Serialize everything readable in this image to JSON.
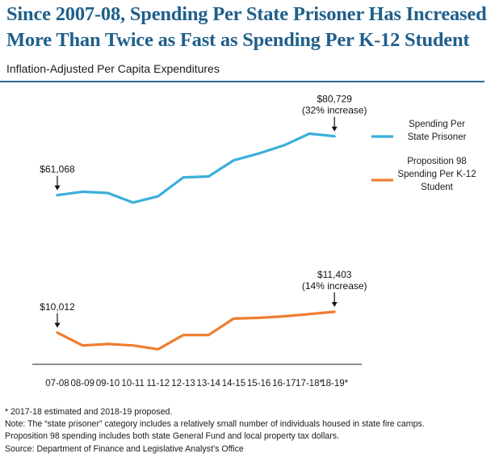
{
  "title_line1": "Since 2007-08, Spending Per State Prisoner Has Increased",
  "title_line2": "More Than Twice as Fast as Spending Per K-12 Student",
  "subtitle": "Inflation-Adjusted Per Capita Expenditures",
  "footnotes": [
    "* 2017-18 estimated and 2018-19 proposed.",
    "Note: The “state prisoner” category includes a relatively small number of individuals housed in state fire camps.",
    "Proposition 98 spending includes both state General Fund and local property tax dollars.",
    "Source: Department of Finance and Legislative Analyst’s Office"
  ],
  "chart_data": {
    "type": "line",
    "categories": [
      "07-08",
      "08-09",
      "09-10",
      "10-11",
      "11-12",
      "12-13",
      "13-14",
      "14-15",
      "15-16",
      "16-17",
      "17-18*",
      "18-19*"
    ],
    "series": [
      {
        "name": "Spending Per State Prisoner",
        "legend_lines": [
          "Spending Per",
          "State Prisoner"
        ],
        "color": "#3aafda",
        "values": [
          61068,
          62200,
          61800,
          58600,
          60700,
          67000,
          67300,
          72700,
          75000,
          77700,
          81600,
          80729
        ]
      },
      {
        "name": "Proposition 98 Spending Per K-12 Student",
        "legend_lines": [
          "Proposition 98",
          "Spending Per K-12",
          "Student"
        ],
        "color": "#ef7d31",
        "values": [
          10012,
          9150,
          9250,
          9150,
          8900,
          9850,
          9850,
          10950,
          11000,
          11100,
          11250,
          11403
        ]
      }
    ],
    "annotations": [
      {
        "text": [
          "$61,068"
        ],
        "series": 0,
        "index": 0
      },
      {
        "text": [
          "$80,729",
          "(32% increase)"
        ],
        "series": 0,
        "index": 11
      },
      {
        "text": [
          "$10,012"
        ],
        "series": 1,
        "index": 0
      },
      {
        "text": [
          "$11,403",
          "(14% increase)"
        ],
        "series": 1,
        "index": 11
      }
    ],
    "grid": false,
    "legend_position": "right"
  }
}
